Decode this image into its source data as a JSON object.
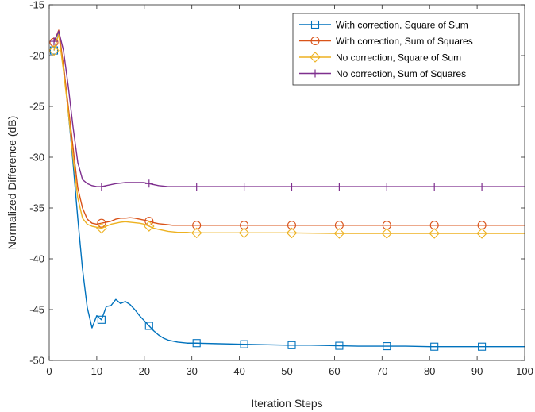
{
  "chart_data": {
    "type": "line",
    "title": "",
    "xlabel": "Iteration Steps",
    "ylabel": "Normalized Difference (dB)",
    "xlim": [
      0,
      100
    ],
    "ylim": [
      -50,
      -15
    ],
    "xticks": [
      0,
      10,
      20,
      30,
      40,
      50,
      60,
      70,
      80,
      90,
      100
    ],
    "yticks": [
      -50,
      -45,
      -40,
      -35,
      -30,
      -25,
      -20,
      -15
    ],
    "grid": false,
    "legend_position": "top-right",
    "series": [
      {
        "name": "With correction, Square of Sum",
        "color": "#0072BD",
        "marker": "square",
        "marker_x": [
          1,
          11,
          21,
          31,
          41,
          51,
          61,
          71,
          81,
          91
        ],
        "x": [
          1,
          2,
          3,
          4,
          5,
          6,
          7,
          8,
          9,
          10,
          11,
          12,
          13,
          14,
          15,
          16,
          17,
          18,
          19,
          20,
          21,
          22,
          23,
          24,
          25,
          26,
          27,
          28,
          29,
          30,
          31,
          35,
          40,
          45,
          50,
          55,
          60,
          65,
          70,
          75,
          80,
          85,
          90,
          95,
          100
        ],
        "y": [
          -19.5,
          -17.8,
          -21.0,
          -25.5,
          -30.5,
          -36.0,
          -41.0,
          -44.8,
          -46.8,
          -45.6,
          -46.0,
          -44.7,
          -44.6,
          -44.0,
          -44.4,
          -44.2,
          -44.5,
          -45.0,
          -45.6,
          -46.1,
          -46.6,
          -47.1,
          -47.5,
          -47.8,
          -48.0,
          -48.1,
          -48.2,
          -48.25,
          -48.3,
          -48.3,
          -48.3,
          -48.35,
          -48.4,
          -48.45,
          -48.5,
          -48.5,
          -48.55,
          -48.6,
          -48.6,
          -48.6,
          -48.65,
          -48.65,
          -48.65,
          -48.65,
          -48.65
        ]
      },
      {
        "name": "With correction, Sum of Squares",
        "color": "#D95319",
        "marker": "circle",
        "marker_x": [
          1,
          11,
          21,
          31,
          41,
          51,
          61,
          71,
          81,
          91
        ],
        "x": [
          1,
          2,
          3,
          4,
          5,
          6,
          7,
          8,
          9,
          10,
          11,
          12,
          13,
          14,
          15,
          16,
          17,
          18,
          19,
          20,
          21,
          22,
          23,
          24,
          25,
          26,
          27,
          28,
          29,
          30,
          31,
          35,
          40,
          50,
          60,
          70,
          80,
          90,
          100
        ],
        "y": [
          -18.7,
          -17.5,
          -21.0,
          -25.0,
          -29.0,
          -33.0,
          -35.0,
          -36.1,
          -36.5,
          -36.6,
          -36.5,
          -36.4,
          -36.3,
          -36.1,
          -36.0,
          -36.0,
          -35.95,
          -36.0,
          -36.1,
          -36.2,
          -36.3,
          -36.45,
          -36.55,
          -36.6,
          -36.65,
          -36.7,
          -36.7,
          -36.7,
          -36.7,
          -36.7,
          -36.7,
          -36.7,
          -36.7,
          -36.7,
          -36.7,
          -36.7,
          -36.7,
          -36.7,
          -36.7
        ]
      },
      {
        "name": "No correction, Square of Sum",
        "color": "#EDB120",
        "marker": "diamond",
        "marker_x": [
          1,
          11,
          21,
          31,
          41,
          51,
          61,
          71,
          81,
          91
        ],
        "x": [
          1,
          2,
          3,
          4,
          5,
          6,
          7,
          8,
          9,
          10,
          11,
          12,
          13,
          14,
          15,
          16,
          17,
          18,
          19,
          20,
          21,
          22,
          23,
          24,
          25,
          26,
          27,
          28,
          29,
          30,
          31,
          35,
          40,
          50,
          60,
          70,
          80,
          90,
          100
        ],
        "y": [
          -19.5,
          -17.9,
          -21.5,
          -25.5,
          -30.0,
          -34.0,
          -36.0,
          -36.6,
          -36.8,
          -36.9,
          -37.0,
          -36.8,
          -36.6,
          -36.5,
          -36.4,
          -36.35,
          -36.4,
          -36.45,
          -36.5,
          -36.6,
          -36.8,
          -37.0,
          -37.1,
          -37.2,
          -37.3,
          -37.35,
          -37.4,
          -37.4,
          -37.4,
          -37.45,
          -37.45,
          -37.45,
          -37.45,
          -37.45,
          -37.5,
          -37.5,
          -37.5,
          -37.5,
          -37.5
        ]
      },
      {
        "name": "No correction, Sum of Squares",
        "color": "#7E2F8E",
        "marker": "plus",
        "marker_x": [
          1,
          11,
          21,
          31,
          41,
          51,
          61,
          71,
          81,
          91
        ],
        "x": [
          1,
          2,
          3,
          4,
          5,
          6,
          7,
          8,
          9,
          10,
          11,
          12,
          13,
          14,
          15,
          16,
          17,
          18,
          19,
          20,
          21,
          22,
          23,
          24,
          25,
          26,
          27,
          28,
          29,
          30,
          31,
          35,
          40,
          50,
          60,
          70,
          80,
          90,
          100
        ],
        "y": [
          -18.6,
          -17.6,
          -19.5,
          -23.0,
          -27.0,
          -30.5,
          -32.2,
          -32.6,
          -32.8,
          -32.9,
          -32.9,
          -32.8,
          -32.7,
          -32.6,
          -32.55,
          -32.5,
          -32.5,
          -32.5,
          -32.5,
          -32.5,
          -32.6,
          -32.7,
          -32.8,
          -32.85,
          -32.9,
          -32.9,
          -32.9,
          -32.9,
          -32.9,
          -32.9,
          -32.9,
          -32.9,
          -32.9,
          -32.9,
          -32.9,
          -32.9,
          -32.9,
          -32.9,
          -32.9
        ]
      }
    ]
  }
}
